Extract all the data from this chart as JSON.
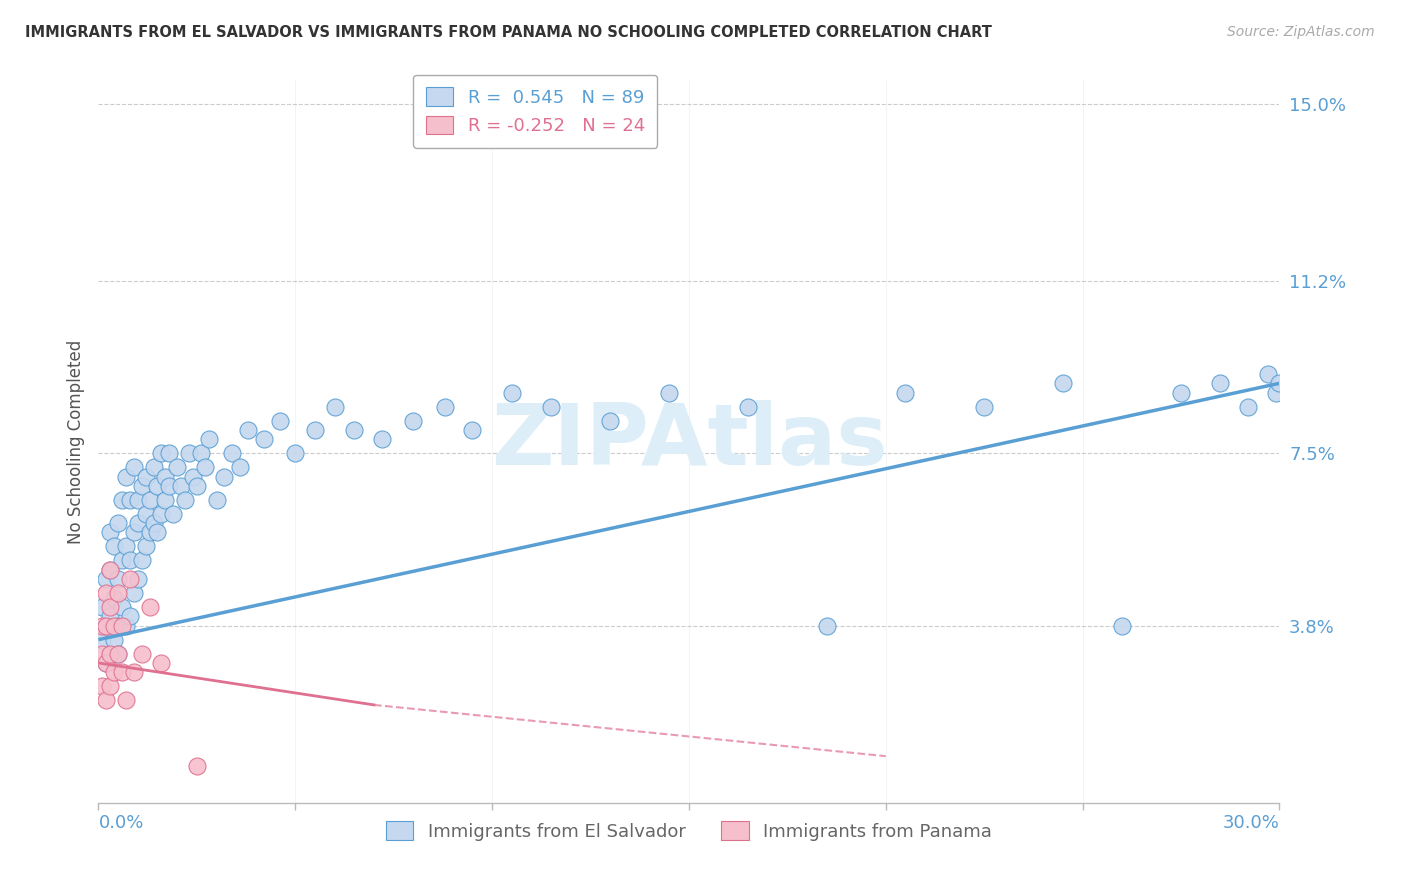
{
  "title": "IMMIGRANTS FROM EL SALVADOR VS IMMIGRANTS FROM PANAMA NO SCHOOLING COMPLETED CORRELATION CHART",
  "source": "Source: ZipAtlas.com",
  "ylabel": "No Schooling Completed",
  "xlim": [
    0.0,
    0.3
  ],
  "ylim": [
    0.0,
    0.155
  ],
  "ytick_vals": [
    0.0,
    0.038,
    0.075,
    0.112,
    0.15
  ],
  "ytick_labels": [
    "",
    "3.8%",
    "7.5%",
    "11.2%",
    "15.0%"
  ],
  "color_blue_fill": "#c5d8ef",
  "color_blue_edge": "#5a9fd4",
  "color_blue_line": "#5a9fd4",
  "color_pink_fill": "#f5bfcc",
  "color_pink_edge": "#e07090",
  "color_pink_line": "#e07090",
  "color_axis_label": "#5a9fd4",
  "color_grid": "#cccccc",
  "watermark": "ZIPAtlas",
  "R_es": 0.545,
  "N_es": 89,
  "R_pa": -0.252,
  "N_pa": 24,
  "legend_label1": "Immigrants from El Salvador",
  "legend_label2": "Immigrants from Panama",
  "es_x": [
    0.001,
    0.001,
    0.002,
    0.002,
    0.002,
    0.003,
    0.003,
    0.003,
    0.003,
    0.004,
    0.004,
    0.004,
    0.005,
    0.005,
    0.005,
    0.005,
    0.006,
    0.006,
    0.006,
    0.007,
    0.007,
    0.007,
    0.008,
    0.008,
    0.008,
    0.009,
    0.009,
    0.009,
    0.01,
    0.01,
    0.01,
    0.011,
    0.011,
    0.012,
    0.012,
    0.012,
    0.013,
    0.013,
    0.014,
    0.014,
    0.015,
    0.015,
    0.016,
    0.016,
    0.017,
    0.017,
    0.018,
    0.018,
    0.019,
    0.02,
    0.021,
    0.022,
    0.023,
    0.024,
    0.025,
    0.026,
    0.027,
    0.028,
    0.03,
    0.032,
    0.034,
    0.036,
    0.038,
    0.042,
    0.046,
    0.05,
    0.055,
    0.06,
    0.065,
    0.072,
    0.08,
    0.088,
    0.095,
    0.105,
    0.115,
    0.13,
    0.145,
    0.165,
    0.185,
    0.205,
    0.225,
    0.245,
    0.26,
    0.275,
    0.285,
    0.292,
    0.297,
    0.299,
    0.3
  ],
  "es_y": [
    0.035,
    0.042,
    0.03,
    0.038,
    0.048,
    0.032,
    0.04,
    0.05,
    0.058,
    0.035,
    0.044,
    0.055,
    0.038,
    0.048,
    0.06,
    0.032,
    0.042,
    0.052,
    0.065,
    0.038,
    0.055,
    0.07,
    0.04,
    0.052,
    0.065,
    0.045,
    0.058,
    0.072,
    0.048,
    0.06,
    0.065,
    0.052,
    0.068,
    0.055,
    0.062,
    0.07,
    0.058,
    0.065,
    0.06,
    0.072,
    0.058,
    0.068,
    0.062,
    0.075,
    0.065,
    0.07,
    0.068,
    0.075,
    0.062,
    0.072,
    0.068,
    0.065,
    0.075,
    0.07,
    0.068,
    0.075,
    0.072,
    0.078,
    0.065,
    0.07,
    0.075,
    0.072,
    0.08,
    0.078,
    0.082,
    0.075,
    0.08,
    0.085,
    0.08,
    0.078,
    0.082,
    0.085,
    0.08,
    0.088,
    0.085,
    0.082,
    0.088,
    0.085,
    0.038,
    0.088,
    0.085,
    0.09,
    0.038,
    0.088,
    0.09,
    0.085,
    0.092,
    0.088,
    0.09
  ],
  "pa_x": [
    0.001,
    0.001,
    0.001,
    0.002,
    0.002,
    0.002,
    0.002,
    0.003,
    0.003,
    0.003,
    0.003,
    0.004,
    0.004,
    0.005,
    0.005,
    0.006,
    0.006,
    0.007,
    0.008,
    0.009,
    0.011,
    0.013,
    0.016,
    0.025
  ],
  "pa_y": [
    0.025,
    0.032,
    0.038,
    0.022,
    0.03,
    0.038,
    0.045,
    0.025,
    0.032,
    0.042,
    0.05,
    0.028,
    0.038,
    0.032,
    0.045,
    0.028,
    0.038,
    0.022,
    0.048,
    0.028,
    0.032,
    0.042,
    0.03,
    0.008
  ],
  "blue_line_x0": 0.0,
  "blue_line_y0": 0.035,
  "blue_line_x1": 0.3,
  "blue_line_y1": 0.09,
  "pink_line_x0": 0.0,
  "pink_line_y0": 0.03,
  "pink_line_x1": 0.2,
  "pink_line_y1": 0.01
}
